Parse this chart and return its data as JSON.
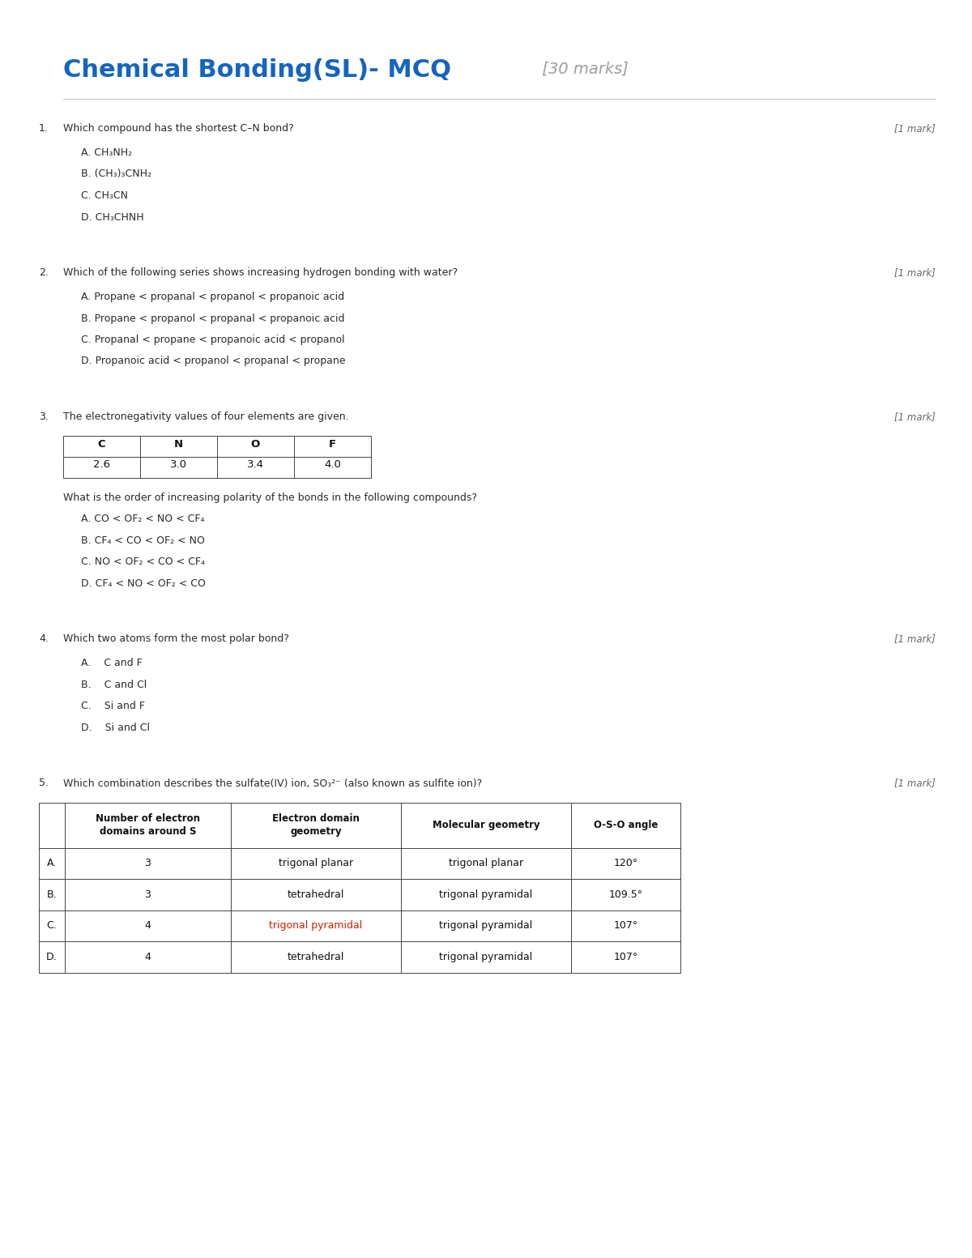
{
  "title_main": "Chemical Bonding(SL)- MCQ",
  "title_marks": " [30 marks]",
  "title_color": "#1565C0",
  "marks_color": "#9E9E9E",
  "bg_color": "#FFFFFF",
  "questions": [
    {
      "number": "1.",
      "question": "Which compound has the shortest C–N bond?",
      "mark": "[1 mark]",
      "options": [
        "A. CH₃NH₂",
        "B. (CH₃)₃CNH₂",
        "C. CH₃CN",
        "D. CH₃CHNH"
      ],
      "type": "simple"
    },
    {
      "number": "2.",
      "question": "Which of the following series shows increasing hydrogen bonding with water?",
      "mark": "[1 mark]",
      "options": [
        "A. Propane < propanal < propanol < propanoic acid",
        "B. Propane < propanol < propanal < propanoic acid",
        "C. Propanal < propane < propanoic acid < propanol",
        "D. Propanoic acid < propanol < propanal < propane"
      ],
      "type": "simple"
    },
    {
      "number": "3.",
      "question": "The electronegativity values of four elements are given.",
      "mark": "[1 mark]",
      "table_headers": [
        "C",
        "N",
        "O",
        "F"
      ],
      "table_values": [
        "2.6",
        "3.0",
        "3.4",
        "4.0"
      ],
      "sub_question": "What is the order of increasing polarity of the bonds in the following compounds?",
      "options": [
        "A. CO < OF₂ < NO < CF₄",
        "B. CF₄ < CO < OF₂ < NO",
        "C. NO < OF₂ < CO < CF₄",
        "D. CF₄ < NO < OF₂ < CO"
      ],
      "type": "table"
    },
    {
      "number": "4.",
      "question": "Which two atoms form the most polar bond?",
      "mark": "[1 mark]",
      "options": [
        "A.    C and F",
        "B.    C and Cl",
        "C.    Si and F",
        "D.    Si and Cl"
      ],
      "type": "simple"
    },
    {
      "number": "5.",
      "question": "Which combination describes the sulfate(IV) ion, SO₃²⁻ (also known as sulfite ion)?",
      "mark": "[1 mark]",
      "type": "bigtable",
      "col_headers": [
        "Number of electron\ndomains around S",
        "Electron domain\ngeometry",
        "Molecular geometry",
        "O-S-O angle"
      ],
      "rows": [
        [
          "A.",
          "3",
          "trigonal planar",
          "trigonal planar",
          "120°"
        ],
        [
          "B.",
          "3",
          "tetrahedral",
          "trigonal pyramidal",
          "109.5°"
        ],
        [
          "C.",
          "4",
          "trigonal pyramidal",
          "trigonal pyramidal",
          "107°"
        ],
        [
          "D.",
          "4",
          "tetrahedral",
          "trigonal pyramidal",
          "107°"
        ]
      ],
      "row_c_red_col": 2
    }
  ]
}
